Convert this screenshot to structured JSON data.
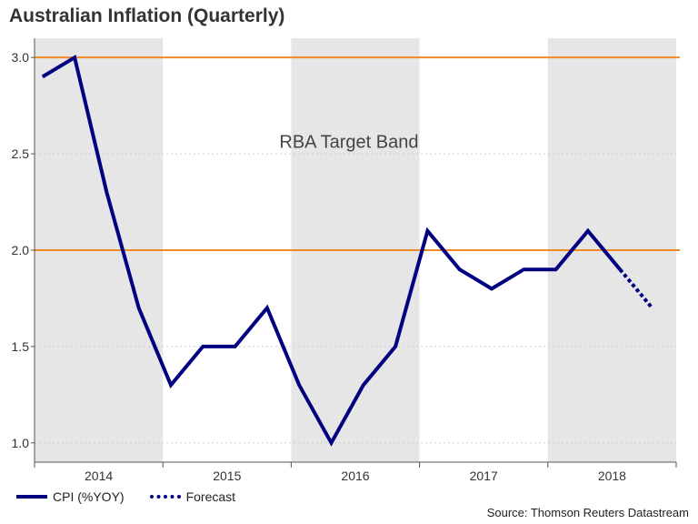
{
  "chart_data": {
    "type": "line",
    "title": "Australian Inflation (Quarterly)",
    "xlabel": "",
    "ylabel": "",
    "ylim": [
      0.9,
      3.1
    ],
    "yticks": [
      "1.0",
      "1.5",
      "2.0",
      "2.5",
      "3.0"
    ],
    "ytick_values": [
      1.0,
      1.5,
      2.0,
      2.5,
      3.0
    ],
    "year_labels": [
      "2014",
      "2015",
      "2016",
      "2017",
      "2018"
    ],
    "shaded_years": [
      "2014",
      "2016",
      "2018"
    ],
    "quarters": [
      "2014-Q1",
      "2014-Q2",
      "2014-Q3",
      "2014-Q4",
      "2015-Q1",
      "2015-Q2",
      "2015-Q3",
      "2015-Q4",
      "2016-Q1",
      "2016-Q2",
      "2016-Q3",
      "2016-Q4",
      "2017-Q1",
      "2017-Q2",
      "2017-Q3",
      "2017-Q4",
      "2018-Q1",
      "2018-Q2",
      "2018-Q3",
      "2018-Q4"
    ],
    "series": [
      {
        "name": "CPI (%YOY)",
        "style": "solid",
        "color": "#000080",
        "values": [
          2.9,
          3.0,
          2.3,
          1.7,
          1.3,
          1.5,
          1.5,
          1.7,
          1.3,
          1.0,
          1.3,
          1.5,
          2.1,
          1.9,
          1.8,
          1.9,
          1.9,
          2.1,
          1.9,
          null
        ]
      },
      {
        "name": "Forecast",
        "style": "dotted",
        "color": "#000080",
        "values": [
          null,
          null,
          null,
          null,
          null,
          null,
          null,
          null,
          null,
          null,
          null,
          null,
          null,
          null,
          null,
          null,
          null,
          null,
          1.9,
          1.7
        ]
      }
    ],
    "reference_lines": [
      {
        "value": 2.0,
        "color": "#f08a24"
      },
      {
        "value": 3.0,
        "color": "#f08a24"
      }
    ],
    "annotation": "RBA Target Band",
    "legend_position": "bottom-left",
    "grid": true,
    "colors": {
      "line": "#000080",
      "band": "#f08a24",
      "shade": "#e6e6e6",
      "grid": "#cccccc",
      "axis": "#555555"
    }
  },
  "legend": {
    "cpi_label": "CPI (%YOY)",
    "forecast_label": "Forecast"
  },
  "source": "Source: Thomson Reuters Datastream"
}
